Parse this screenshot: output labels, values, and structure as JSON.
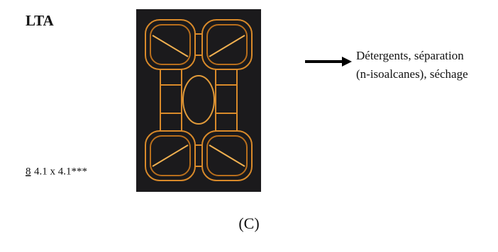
{
  "label": "LTA",
  "pore": {
    "ring": "8",
    "size": "4.1 x 4.1***"
  },
  "uses": [
    "Détergents, séparation",
    "(n-isoalcanes), séchage"
  ],
  "caption": "(C)"
}
